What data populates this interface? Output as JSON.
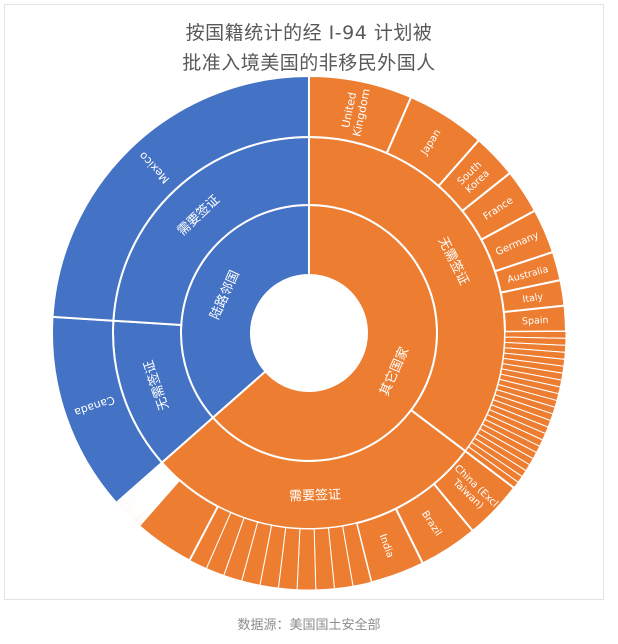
{
  "chart_data": {
    "type": "sunburst",
    "title_line1": "按国籍统计的经 I-94 计划被",
    "title_line2": "批准入境美国的非移民外国人",
    "source": "数据源：美国国土安全部",
    "colors": {
      "陆路邻国": "#4472c4",
      "其它国家": "#ed7d31",
      "border": "#ffffff",
      "label": "#ffffff"
    },
    "levels": [
      {
        "name": "陆路邻国",
        "value": 36.5,
        "children": [
          {
            "name": "无需签证",
            "value": 12.5,
            "children": [
              {
                "name": "Canada",
                "value": 12.5
              }
            ]
          },
          {
            "name": "需要签证",
            "value": 24.0,
            "children": [
              {
                "name": "Mexico",
                "value": 24.0
              }
            ]
          }
        ]
      },
      {
        "name": "其它国家",
        "value": 63.5,
        "children": [
          {
            "name": "无需签证",
            "value": 35.3,
            "children": [
              {
                "name": "United Kingdom",
                "label_lines": [
                  "United",
                  "Kingdom"
                ],
                "value": 6.5
              },
              {
                "name": "Japan",
                "value": 5.0
              },
              {
                "name": "South Korea",
                "label_lines": [
                  "South",
                  "Korea"
                ],
                "value": 2.8
              },
              {
                "name": "France",
                "value": 2.8
              },
              {
                "name": "Germany",
                "value": 2.8
              },
              {
                "name": "Australia",
                "value": 1.8
              },
              {
                "name": "Italy",
                "value": 1.6
              },
              {
                "name": "Spain",
                "value": 1.6
              },
              {
                "name": "",
                "value": 10.4,
                "small_slices": 24
              }
            ]
          },
          {
            "name": "需要签证",
            "value": 28.2,
            "children": [
              {
                "name": "China (Excl Taiwan)",
                "label_lines": [
                  "China (Excl",
                  "Taiwan)"
                ],
                "value": 3.7
              },
              {
                "name": "Brazil",
                "value": 3.7
              },
              {
                "name": "India",
                "value": 3.4
              },
              {
                "name": "",
                "value": 11.6,
                "small_slices": 10
              },
              {
                "name": "",
                "value": 3.8,
                "small_slices": 1
              },
              {
                "name": "",
                "value": 2.0,
                "small_slices": 30
              }
            ]
          }
        ]
      }
    ]
  }
}
